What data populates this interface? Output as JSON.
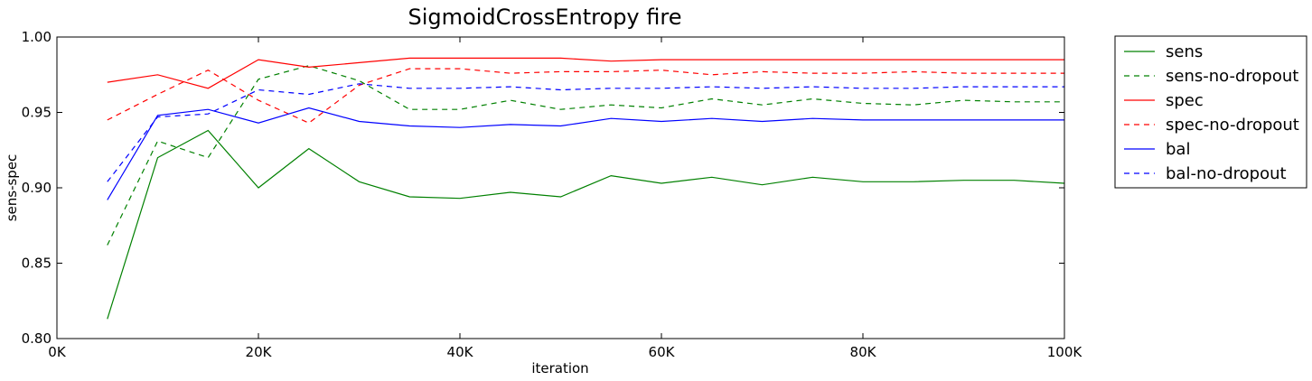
{
  "chart_data": {
    "type": "line",
    "title": "SigmoidCrossEntropy fire",
    "xlabel": "iteration",
    "ylabel": "sens-spec",
    "xlim": [
      0,
      100000
    ],
    "ylim": [
      0.8,
      1.0
    ],
    "x_ticks": [
      {
        "value": 0,
        "label": "0K"
      },
      {
        "value": 20000,
        "label": "20K"
      },
      {
        "value": 40000,
        "label": "40K"
      },
      {
        "value": 60000,
        "label": "60K"
      },
      {
        "value": 80000,
        "label": "80K"
      },
      {
        "value": 100000,
        "label": "100K"
      }
    ],
    "y_ticks": [
      {
        "value": 0.8,
        "label": "0.80"
      },
      {
        "value": 0.85,
        "label": "0.85"
      },
      {
        "value": 0.9,
        "label": "0.90"
      },
      {
        "value": 0.95,
        "label": "0.95"
      },
      {
        "value": 1.0,
        "label": "1.00"
      }
    ],
    "grid": false,
    "legend_position": "outside-right-top",
    "x": [
      5000,
      10000,
      15000,
      20000,
      25000,
      30000,
      35000,
      40000,
      45000,
      50000,
      55000,
      60000,
      65000,
      70000,
      75000,
      80000,
      85000,
      90000,
      95000,
      100000
    ],
    "series": [
      {
        "name": "sens",
        "color": "#008000",
        "style": "solid",
        "values": [
          0.813,
          0.92,
          0.938,
          0.9,
          0.926,
          0.904,
          0.894,
          0.893,
          0.897,
          0.894,
          0.908,
          0.903,
          0.907,
          0.902,
          0.907,
          0.904,
          0.904,
          0.905,
          0.905,
          0.903
        ]
      },
      {
        "name": "sens-no-dropout",
        "color": "#008000",
        "style": "dashed",
        "values": [
          0.862,
          0.931,
          0.92,
          0.972,
          0.981,
          0.971,
          0.952,
          0.952,
          0.958,
          0.952,
          0.955,
          0.953,
          0.959,
          0.955,
          0.959,
          0.956,
          0.955,
          0.958,
          0.957,
          0.957
        ]
      },
      {
        "name": "spec",
        "color": "#ff0000",
        "style": "solid",
        "values": [
          0.97,
          0.975,
          0.966,
          0.985,
          0.98,
          0.983,
          0.986,
          0.986,
          0.986,
          0.986,
          0.984,
          0.985,
          0.985,
          0.985,
          0.985,
          0.985,
          0.985,
          0.985,
          0.985,
          0.985
        ]
      },
      {
        "name": "spec-no-dropout",
        "color": "#ff0000",
        "style": "dashed",
        "values": [
          0.945,
          0.962,
          0.978,
          0.958,
          0.943,
          0.968,
          0.979,
          0.979,
          0.976,
          0.977,
          0.977,
          0.978,
          0.975,
          0.977,
          0.976,
          0.976,
          0.977,
          0.976,
          0.976,
          0.976
        ]
      },
      {
        "name": "bal",
        "color": "#0000ff",
        "style": "solid",
        "values": [
          0.892,
          0.948,
          0.952,
          0.943,
          0.953,
          0.944,
          0.941,
          0.94,
          0.942,
          0.941,
          0.946,
          0.944,
          0.946,
          0.944,
          0.946,
          0.945,
          0.945,
          0.945,
          0.945,
          0.945
        ]
      },
      {
        "name": "bal-no-dropout",
        "color": "#0000ff",
        "style": "dashed",
        "values": [
          0.904,
          0.947,
          0.949,
          0.965,
          0.962,
          0.969,
          0.966,
          0.966,
          0.967,
          0.965,
          0.966,
          0.966,
          0.967,
          0.966,
          0.967,
          0.966,
          0.966,
          0.967,
          0.967,
          0.967
        ]
      }
    ]
  }
}
